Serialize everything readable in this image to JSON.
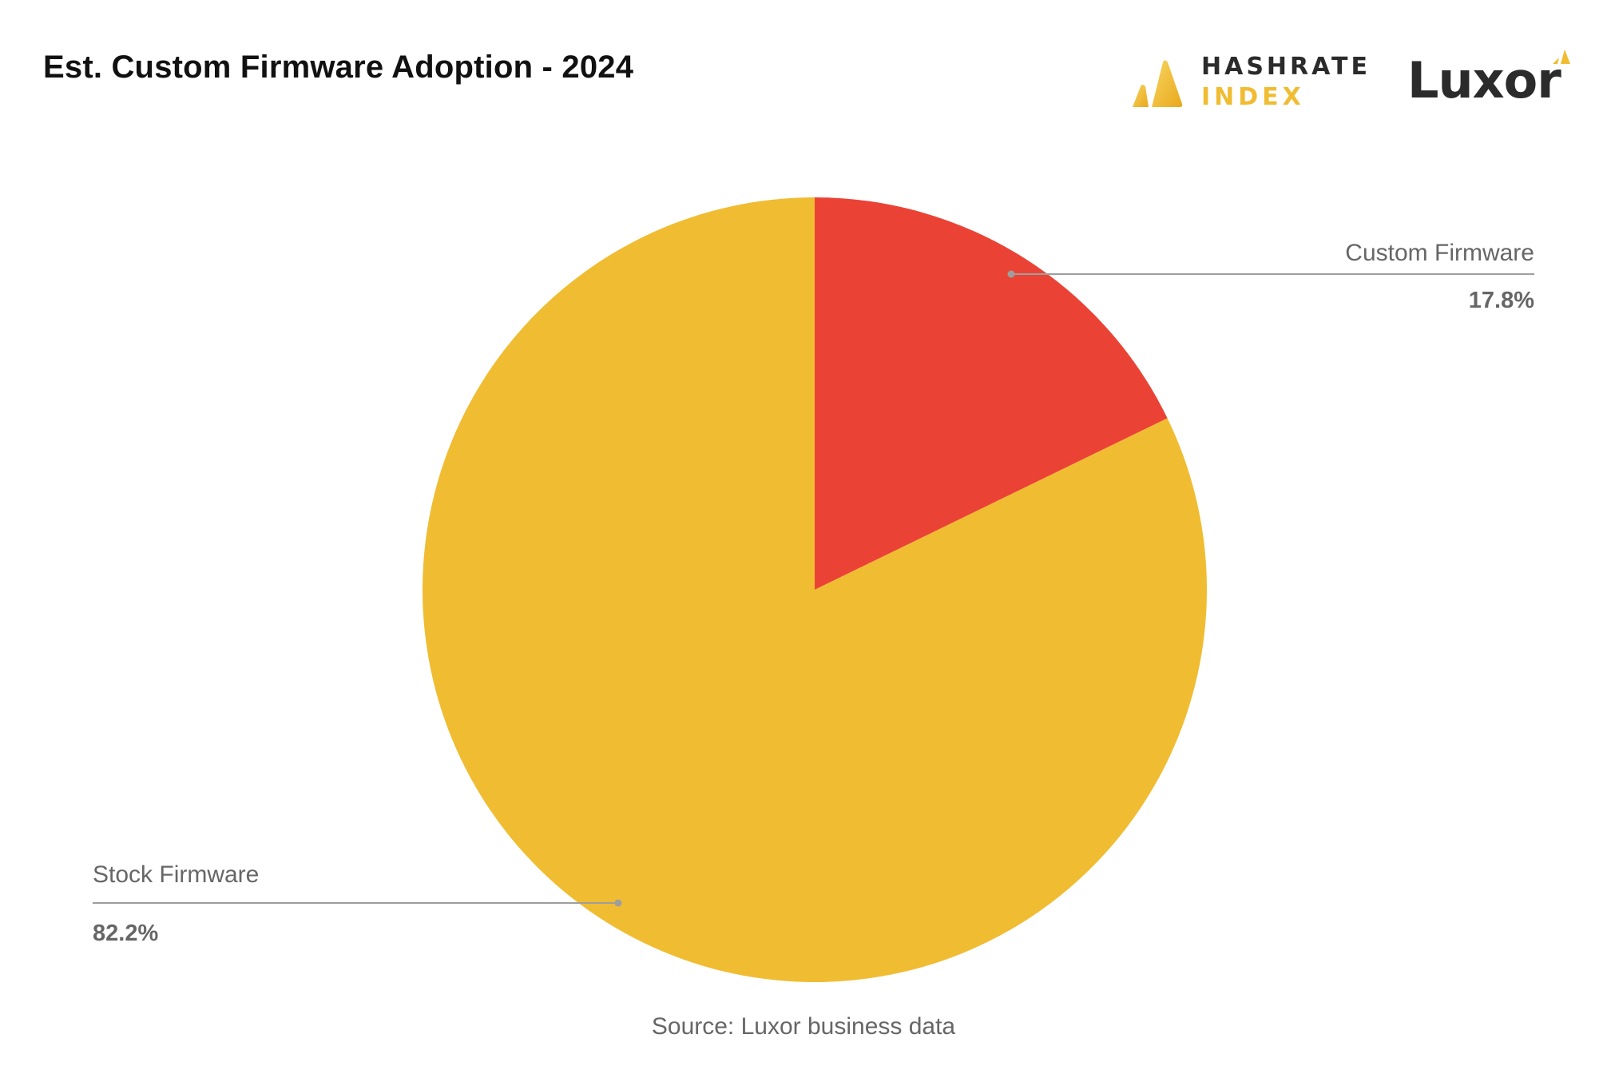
{
  "title": "Est. Custom Firmware Adoption - 2024",
  "brands": {
    "hashrate_top": "HASHRATE",
    "hashrate_bottom": "INDEX",
    "luxor": "Luxor"
  },
  "source": "Source: Luxor business data",
  "colors": {
    "custom_firmware": "#ea4335",
    "stock_firmware": "#f0bc31",
    "leader_line": "#9e9e9e",
    "label_text": "#666666"
  },
  "chart_data": {
    "type": "pie",
    "title": "Est. Custom Firmware Adoption - 2024",
    "start_angle": "12 o'clock, clockwise",
    "slices": [
      {
        "label": "Custom Firmware",
        "value": 17.8,
        "display": "17.8%",
        "color": "#ea4335"
      },
      {
        "label": "Stock Firmware",
        "value": 82.2,
        "display": "82.2%",
        "color": "#f0bc31"
      }
    ]
  }
}
